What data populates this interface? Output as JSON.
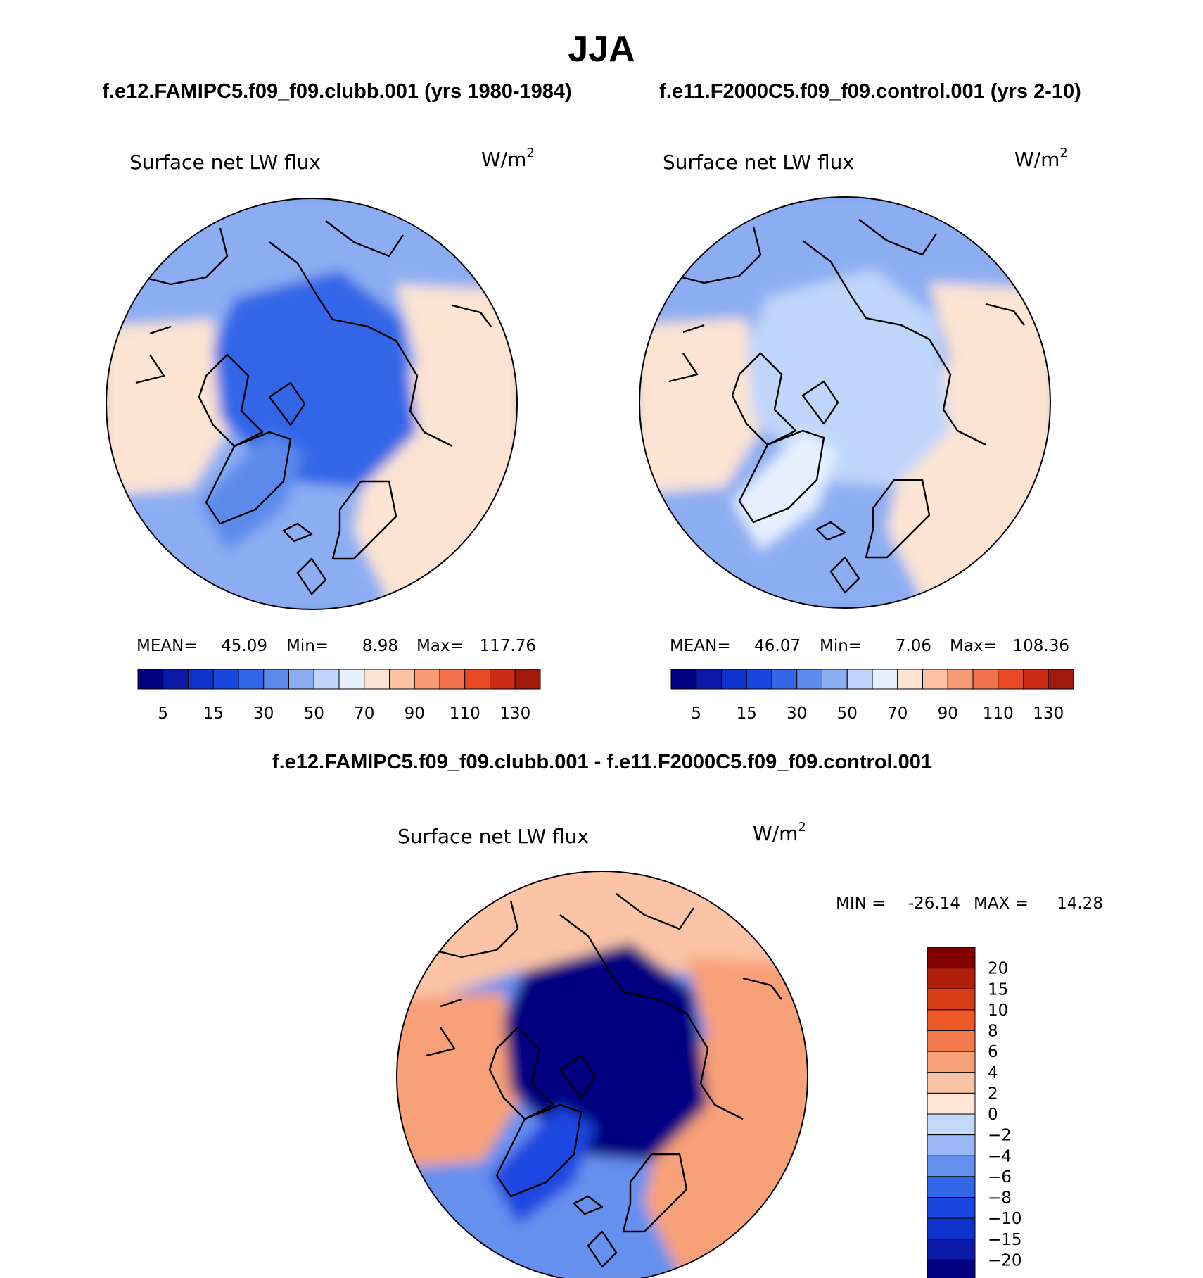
{
  "figure": {
    "main_title": "JJA",
    "case_title": "f.e12.FAMIPC5.f09_f09.clubb.001 (yrs 1980-1984)",
    "control_title": "f.e11.F2000C5.f09_f09.control.001 (yrs 2-10)",
    "diff_title": "f.e12.FAMIPC5.f09_f09.clubb.001 - f.e11.F2000C5.f09_f09.control.001"
  },
  "colors": {
    "abs_scale": [
      "#000080",
      "#0a1aa6",
      "#0d33cc",
      "#1a47e0",
      "#3366e6",
      "#5c8aeb",
      "#8cadf2",
      "#bfd5fa",
      "#e6f0ff",
      "#fde4d3",
      "#fbc2a4",
      "#f89a74",
      "#f3714b",
      "#e84a26",
      "#cc2a12",
      "#a0190a",
      "#7a0000"
    ],
    "diff_scale": [
      "#000080",
      "#0a1aa6",
      "#0d33cc",
      "#1a47e0",
      "#3366e6",
      "#6690ee",
      "#99b8f5",
      "#c4dafb",
      "#fde6d6",
      "#fbc4a6",
      "#f8a078",
      "#f47a4f",
      "#ef5828",
      "#d83c14",
      "#b01e08",
      "#800000"
    ]
  },
  "chart_data": [
    {
      "type": "heatmap",
      "panel": "case",
      "title": "Surface net LW flux",
      "units": "W/m",
      "units_sup": "2",
      "stats": {
        "mean_label": "MEAN=",
        "mean": 45.09,
        "min_label": "Min=",
        "min": 8.98,
        "max_label": "Max=",
        "max": 117.76
      },
      "colorbar_ticks": [
        "5",
        "15",
        "30",
        "50",
        "70",
        "90",
        "110",
        "130"
      ],
      "colorbar_bins": 16,
      "field": {
        "pole": 28,
        "ring": 40,
        "land": 46,
        "continent": 72,
        "greenland": 35
      }
    },
    {
      "type": "heatmap",
      "panel": "control",
      "title": "Surface net LW flux",
      "units": "W/m",
      "units_sup": "2",
      "stats": {
        "mean_label": "MEAN=",
        "mean": 46.07,
        "min_label": "Min=",
        "min": 7.06,
        "max_label": "Max=",
        "max": 108.36
      },
      "colorbar_ticks": [
        "5",
        "15",
        "30",
        "50",
        "70",
        "90",
        "110",
        "130"
      ],
      "colorbar_bins": 16,
      "field": {
        "pole": 55,
        "ring": 45,
        "land": 42,
        "continent": 70,
        "greenland": 62
      }
    },
    {
      "type": "heatmap",
      "panel": "difference",
      "title": "Surface net LW flux",
      "units": "W/m",
      "units_sup": "2",
      "stats": {
        "min_label": "MIN =",
        "min": -26.14,
        "max_label": "MAX =",
        "max": 14.28
      },
      "colorbar_ticks": [
        "20",
        "15",
        "10",
        "8",
        "6",
        "4",
        "2",
        "0",
        "−2",
        "−4",
        "−6",
        "−8",
        "−10",
        "−15",
        "−20"
      ],
      "colorbar_bins": 16,
      "field": {
        "pole": -22,
        "ring": -6,
        "land": 3,
        "continent": 4,
        "greenland": -9
      }
    }
  ]
}
